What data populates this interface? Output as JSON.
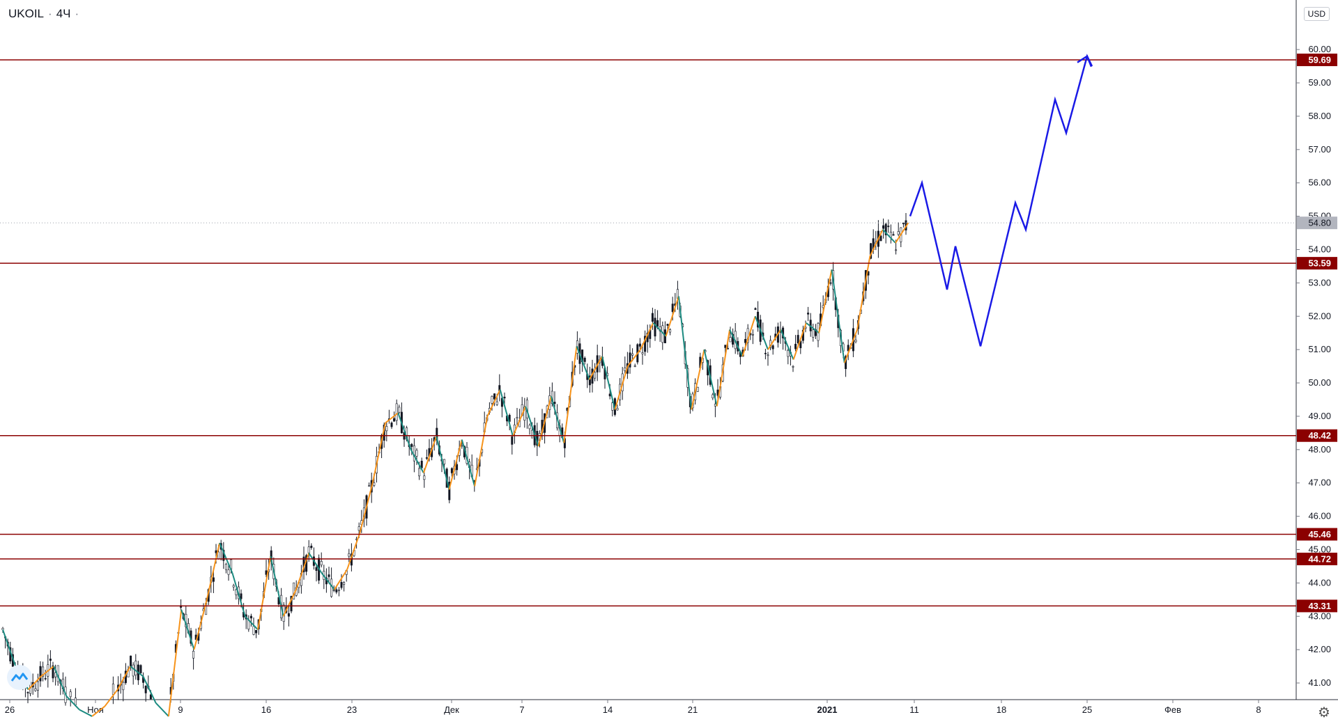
{
  "header": {
    "symbol": "UKOIL",
    "interval": "4Ч",
    "currency": "USD"
  },
  "chart_data": {
    "type": "candlestick",
    "ylim": [
      40.5,
      60.4
    ],
    "y_ticks": [
      "41.00",
      "42.00",
      "43.00",
      "44.00",
      "45.00",
      "46.00",
      "47.00",
      "48.00",
      "49.00",
      "50.00",
      "51.00",
      "52.00",
      "53.00",
      "54.00",
      "55.00",
      "56.00",
      "57.00",
      "58.00",
      "59.00",
      "60.00"
    ],
    "x_ticks": [
      "26",
      "Ноя",
      "9",
      "16",
      "23",
      "Дек",
      "7",
      "14",
      "21",
      "2021",
      "11",
      "18",
      "25",
      "Фев",
      "8"
    ],
    "horizontal_levels": [
      59.69,
      53.59,
      48.42,
      45.46,
      44.72,
      43.31
    ],
    "last_price": 54.8,
    "price_path": [
      [
        0,
        42.6
      ],
      [
        1,
        41.5
      ],
      [
        2,
        40.8
      ],
      [
        3,
        41.2
      ],
      [
        4,
        41.5
      ],
      [
        5,
        40.6
      ],
      [
        6,
        40.2
      ],
      [
        7,
        40.0
      ],
      [
        8,
        40.3
      ],
      [
        9,
        40.8
      ],
      [
        10,
        41.5
      ],
      [
        11,
        41.2
      ],
      [
        12,
        40.4
      ],
      [
        13,
        40.0
      ],
      [
        14,
        43.2
      ],
      [
        15,
        42.0
      ],
      [
        16,
        43.5
      ],
      [
        17,
        45.2
      ],
      [
        18,
        44.3
      ],
      [
        19,
        43.0
      ],
      [
        20,
        42.6
      ],
      [
        21,
        44.8
      ],
      [
        22,
        43.0
      ],
      [
        23,
        43.8
      ],
      [
        24,
        44.9
      ],
      [
        25,
        44.3
      ],
      [
        26,
        43.8
      ],
      [
        27,
        44.4
      ],
      [
        28,
        45.5
      ],
      [
        29,
        47.0
      ],
      [
        30,
        48.8
      ],
      [
        31,
        49.1
      ],
      [
        32,
        48.0
      ],
      [
        33,
        47.3
      ],
      [
        34,
        48.4
      ],
      [
        35,
        46.8
      ],
      [
        36,
        48.3
      ],
      [
        37,
        46.9
      ],
      [
        38,
        49.0
      ],
      [
        39,
        49.8
      ],
      [
        40,
        48.4
      ],
      [
        41,
        49.3
      ],
      [
        42,
        48.1
      ],
      [
        43,
        49.6
      ],
      [
        44,
        48.2
      ],
      [
        45,
        51.1
      ],
      [
        46,
        50.1
      ],
      [
        47,
        50.8
      ],
      [
        48,
        49.2
      ],
      [
        49,
        50.5
      ],
      [
        50,
        51.0
      ],
      [
        51,
        51.8
      ],
      [
        52,
        51.4
      ],
      [
        53,
        52.6
      ],
      [
        54,
        49.2
      ],
      [
        55,
        51.0
      ],
      [
        56,
        49.3
      ],
      [
        57,
        51.6
      ],
      [
        58,
        50.8
      ],
      [
        59,
        52.0
      ],
      [
        60,
        51.0
      ],
      [
        61,
        51.6
      ],
      [
        62,
        50.7
      ],
      [
        63,
        51.8
      ],
      [
        64,
        51.5
      ],
      [
        65,
        53.4
      ],
      [
        66,
        50.6
      ],
      [
        67,
        51.6
      ],
      [
        68,
        53.8
      ],
      [
        69,
        54.6
      ],
      [
        70,
        54.2
      ],
      [
        71,
        54.8
      ]
    ],
    "forecast_path": [
      55.0,
      56.0,
      52.8,
      54.1,
      51.1,
      55.4,
      54.6,
      58.5,
      57.5,
      59.8,
      59.5
    ]
  }
}
